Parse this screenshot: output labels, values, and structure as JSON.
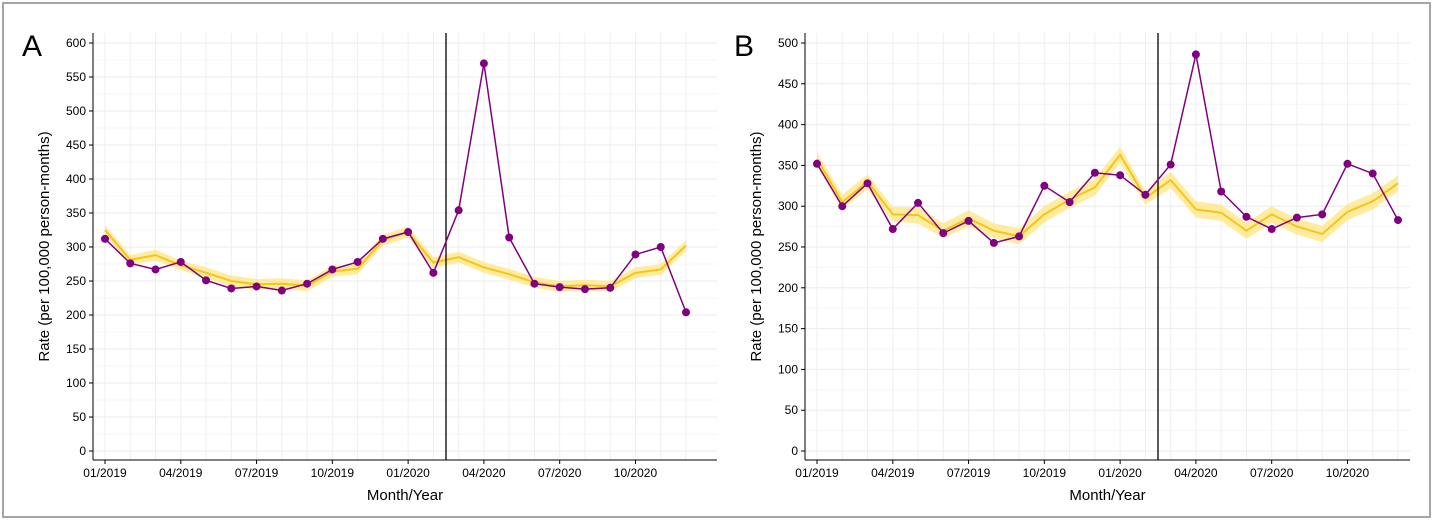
{
  "chart_data": [
    {
      "type": "line",
      "panel_label": "A",
      "xlabel": "Month/Year",
      "ylabel": "Rate (per 100,000 person-months)",
      "ylim": [
        0,
        600
      ],
      "yticks": [
        0,
        50,
        100,
        150,
        200,
        250,
        300,
        350,
        400,
        450,
        500,
        550,
        600
      ],
      "xtick_labels": [
        "01/2019",
        "04/2019",
        "07/2019",
        "10/2019",
        "01/2020",
        "04/2020",
        "07/2020",
        "10/2020"
      ],
      "x": [
        "01/2019",
        "02/2019",
        "03/2019",
        "04/2019",
        "05/2019",
        "06/2019",
        "07/2019",
        "08/2019",
        "09/2019",
        "10/2019",
        "11/2019",
        "12/2019",
        "01/2020",
        "02/2020",
        "03/2020",
        "04/2020",
        "05/2020",
        "06/2020",
        "07/2020",
        "08/2020",
        "09/2020",
        "10/2020",
        "11/2020",
        "12/2020"
      ],
      "vertical_line_at": "between 02/2020 and 03/2020",
      "grid": true,
      "series": [
        {
          "role": "observed",
          "color": "#800080",
          "values": [
            312,
            276,
            267,
            278,
            251,
            239,
            242,
            236,
            246,
            267,
            278,
            312,
            322,
            262,
            354,
            570,
            314,
            246,
            241,
            238,
            240,
            289,
            300,
            204
          ]
        },
        {
          "role": "expected",
          "color": "#f5c518",
          "band_color": "#ffe680",
          "values": [
            325,
            281,
            288,
            273,
            262,
            250,
            245,
            246,
            243,
            264,
            268,
            310,
            322,
            277,
            285,
            270,
            260,
            248,
            242,
            244,
            242,
            262,
            267,
            302
          ],
          "lower": [
            318,
            274,
            280,
            266,
            254,
            242,
            237,
            238,
            235,
            256,
            260,
            302,
            314,
            269,
            277,
            262,
            252,
            240,
            234,
            236,
            234,
            254,
            259,
            294
          ],
          "upper": [
            332,
            288,
            296,
            280,
            270,
            258,
            253,
            254,
            251,
            272,
            276,
            318,
            330,
            285,
            293,
            278,
            268,
            256,
            250,
            252,
            250,
            270,
            275,
            310
          ]
        }
      ]
    },
    {
      "type": "line",
      "panel_label": "B",
      "xlabel": "Month/Year",
      "ylabel": "Rate (per 100,000 person-months)",
      "ylim": [
        0,
        500
      ],
      "yticks": [
        0,
        50,
        100,
        150,
        200,
        250,
        300,
        350,
        400,
        450,
        500
      ],
      "xtick_labels": [
        "01/2019",
        "04/2019",
        "07/2019",
        "10/2019",
        "01/2020",
        "04/2020",
        "07/2020",
        "10/2020"
      ],
      "x": [
        "01/2019",
        "02/2019",
        "03/2019",
        "04/2019",
        "05/2019",
        "06/2019",
        "07/2019",
        "08/2019",
        "09/2019",
        "10/2019",
        "11/2019",
        "12/2019",
        "01/2020",
        "02/2020",
        "03/2020",
        "04/2020",
        "05/2020",
        "06/2020",
        "07/2020",
        "08/2020",
        "09/2020",
        "10/2020",
        "11/2020",
        "12/2020"
      ],
      "vertical_line_at": "between 02/2020 and 03/2020",
      "grid": true,
      "series": [
        {
          "role": "observed",
          "color": "#800080",
          "values": [
            352,
            300,
            328,
            272,
            304,
            267,
            282,
            255,
            263,
            325,
            305,
            341,
            338,
            314,
            351,
            486,
            318,
            287,
            272,
            286,
            290,
            352,
            340,
            283
          ]
        },
        {
          "role": "expected",
          "color": "#f5c518",
          "band_color": "#ffe680",
          "values": [
            358,
            305,
            330,
            290,
            289,
            270,
            285,
            270,
            263,
            290,
            308,
            323,
            363,
            310,
            332,
            296,
            292,
            270,
            290,
            275,
            266,
            293,
            306,
            328
          ],
          "lower": [
            350,
            296,
            321,
            281,
            279,
            261,
            275,
            261,
            253,
            280,
            298,
            313,
            353,
            302,
            322,
            286,
            282,
            260,
            280,
            265,
            256,
            283,
            296,
            318
          ],
          "upper": [
            366,
            314,
            339,
            299,
            299,
            279,
            295,
            279,
            273,
            300,
            318,
            333,
            373,
            318,
            342,
            306,
            302,
            280,
            300,
            285,
            276,
            303,
            316,
            338
          ]
        }
      ]
    }
  ]
}
